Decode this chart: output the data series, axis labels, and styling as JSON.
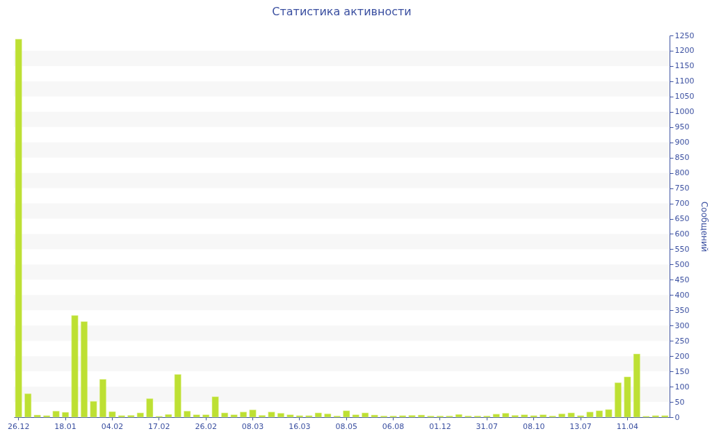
{
  "chart_data": {
    "type": "bar",
    "title": "Статистика активности",
    "ylabel": "Сообщений",
    "categories": [
      "26.12",
      null,
      null,
      null,
      null,
      "18.01",
      null,
      null,
      null,
      null,
      "04.02",
      null,
      null,
      null,
      null,
      "17.02",
      null,
      null,
      null,
      null,
      "26.02",
      null,
      null,
      null,
      null,
      "08.03",
      null,
      null,
      null,
      null,
      "16.03",
      null,
      null,
      null,
      null,
      "08.05",
      null,
      null,
      null,
      null,
      "06.08",
      null,
      null,
      null,
      null,
      "01.12",
      null,
      null,
      null,
      null,
      "31.07",
      null,
      null,
      null,
      null,
      "08.10",
      null,
      null,
      null,
      null,
      "13.07",
      null,
      null,
      null,
      null,
      "11.04",
      null,
      null,
      null,
      null
    ],
    "values": [
      1238,
      77,
      7,
      5,
      20,
      16,
      333,
      313,
      52,
      124,
      18,
      5,
      6,
      14,
      61,
      3,
      9,
      140,
      20,
      8,
      8,
      67,
      14,
      8,
      17,
      24,
      6,
      17,
      13,
      8,
      5,
      5,
      14,
      11,
      4,
      21,
      8,
      14,
      7,
      4,
      4,
      5,
      6,
      7,
      4,
      4,
      4,
      9,
      4,
      4,
      4,
      10,
      13,
      6,
      8,
      5,
      8,
      4,
      11,
      14,
      5,
      17,
      21,
      25,
      113,
      132,
      207,
      3,
      5,
      5
    ],
    "color": "#bde033",
    "ylim": [
      0,
      1250
    ],
    "yticks": [
      0,
      50,
      100,
      150,
      200,
      250,
      300,
      350,
      400,
      450,
      500,
      550,
      600,
      650,
      700,
      750,
      800,
      850,
      900,
      950,
      1000,
      1050,
      1100,
      1150,
      1200,
      1250
    ],
    "bands": [
      {
        "axis": "y",
        "from": 50,
        "to": 100,
        "color": "#f7f7f7"
      },
      {
        "axis": "y",
        "from": 150,
        "to": 200,
        "color": "#f7f7f7"
      },
      {
        "axis": "y",
        "from": 250,
        "to": 300,
        "color": "#f7f7f7"
      },
      {
        "axis": "y",
        "from": 350,
        "to": 400,
        "color": "#f7f7f7"
      },
      {
        "axis": "y",
        "from": 450,
        "to": 500,
        "color": "#f7f7f7"
      },
      {
        "axis": "y",
        "from": 550,
        "to": 600,
        "color": "#f7f7f7"
      },
      {
        "axis": "y",
        "from": 650,
        "to": 700,
        "color": "#f7f7f7"
      },
      {
        "axis": "y",
        "from": 750,
        "to": 800,
        "color": "#f7f7f7"
      },
      {
        "axis": "y",
        "from": 850,
        "to": 900,
        "color": "#f7f7f7"
      },
      {
        "axis": "y",
        "from": 950,
        "to": 1000,
        "color": "#f7f7f7"
      },
      {
        "axis": "y",
        "from": 1050,
        "to": 1100,
        "color": "#f7f7f7"
      },
      {
        "axis": "y",
        "from": 1150,
        "to": 1200,
        "color": "#f7f7f7"
      }
    ]
  }
}
